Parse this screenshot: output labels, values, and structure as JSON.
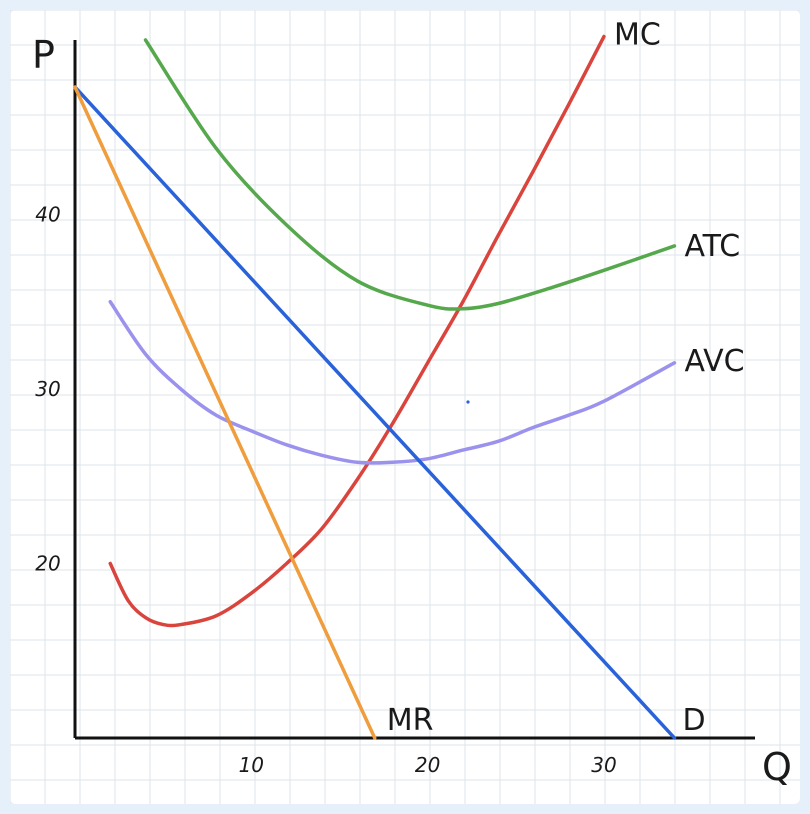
{
  "chart_data": {
    "type": "line",
    "xlabel": "Q",
    "ylabel": "P",
    "xlim": [
      0,
      38
    ],
    "ylim": [
      10,
      50
    ],
    "x_ticks": [
      10,
      20,
      30
    ],
    "y_ticks": [
      20,
      30,
      40
    ],
    "grid": true,
    "series": [
      {
        "name": "MC",
        "color": "#d9453d",
        "x": [
          2,
          3,
          4,
          5,
          6,
          8,
          10,
          12,
          14,
          16,
          18,
          20,
          22,
          24,
          26,
          28,
          30
        ],
        "y": [
          20,
          17.9,
          16.9,
          16.5,
          16.5,
          17.0,
          18.3,
          20.0,
          22.0,
          24.8,
          28.0,
          31.5,
          35.0,
          38.8,
          42.5,
          46.3,
          50.2
        ]
      },
      {
        "name": "ATC",
        "color": "#55a84b",
        "x": [
          4,
          8,
          12,
          16,
          20,
          22,
          24,
          27,
          30,
          34
        ],
        "y": [
          50.0,
          43.8,
          39.4,
          36.2,
          34.8,
          34.6,
          34.9,
          35.8,
          36.8,
          38.2
        ]
      },
      {
        "name": "AVC",
        "color": "#9b92ee",
        "x": [
          2,
          4,
          6,
          8,
          10,
          12,
          14,
          16,
          18,
          20,
          22,
          24,
          26,
          28,
          30,
          34
        ],
        "y": [
          35.0,
          32.0,
          30.0,
          28.5,
          27.6,
          26.8,
          26.2,
          25.8,
          25.8,
          26.0,
          26.5,
          27.0,
          27.8,
          28.5,
          29.3,
          31.5
        ]
      },
      {
        "name": "D",
        "color": "#2a62d9",
        "x": [
          0,
          34
        ],
        "y": [
          47.3,
          10.0
        ]
      },
      {
        "name": "MR",
        "color": "#ef9d3d",
        "x": [
          0,
          17
        ],
        "y": [
          47.3,
          10.0
        ]
      }
    ]
  }
}
